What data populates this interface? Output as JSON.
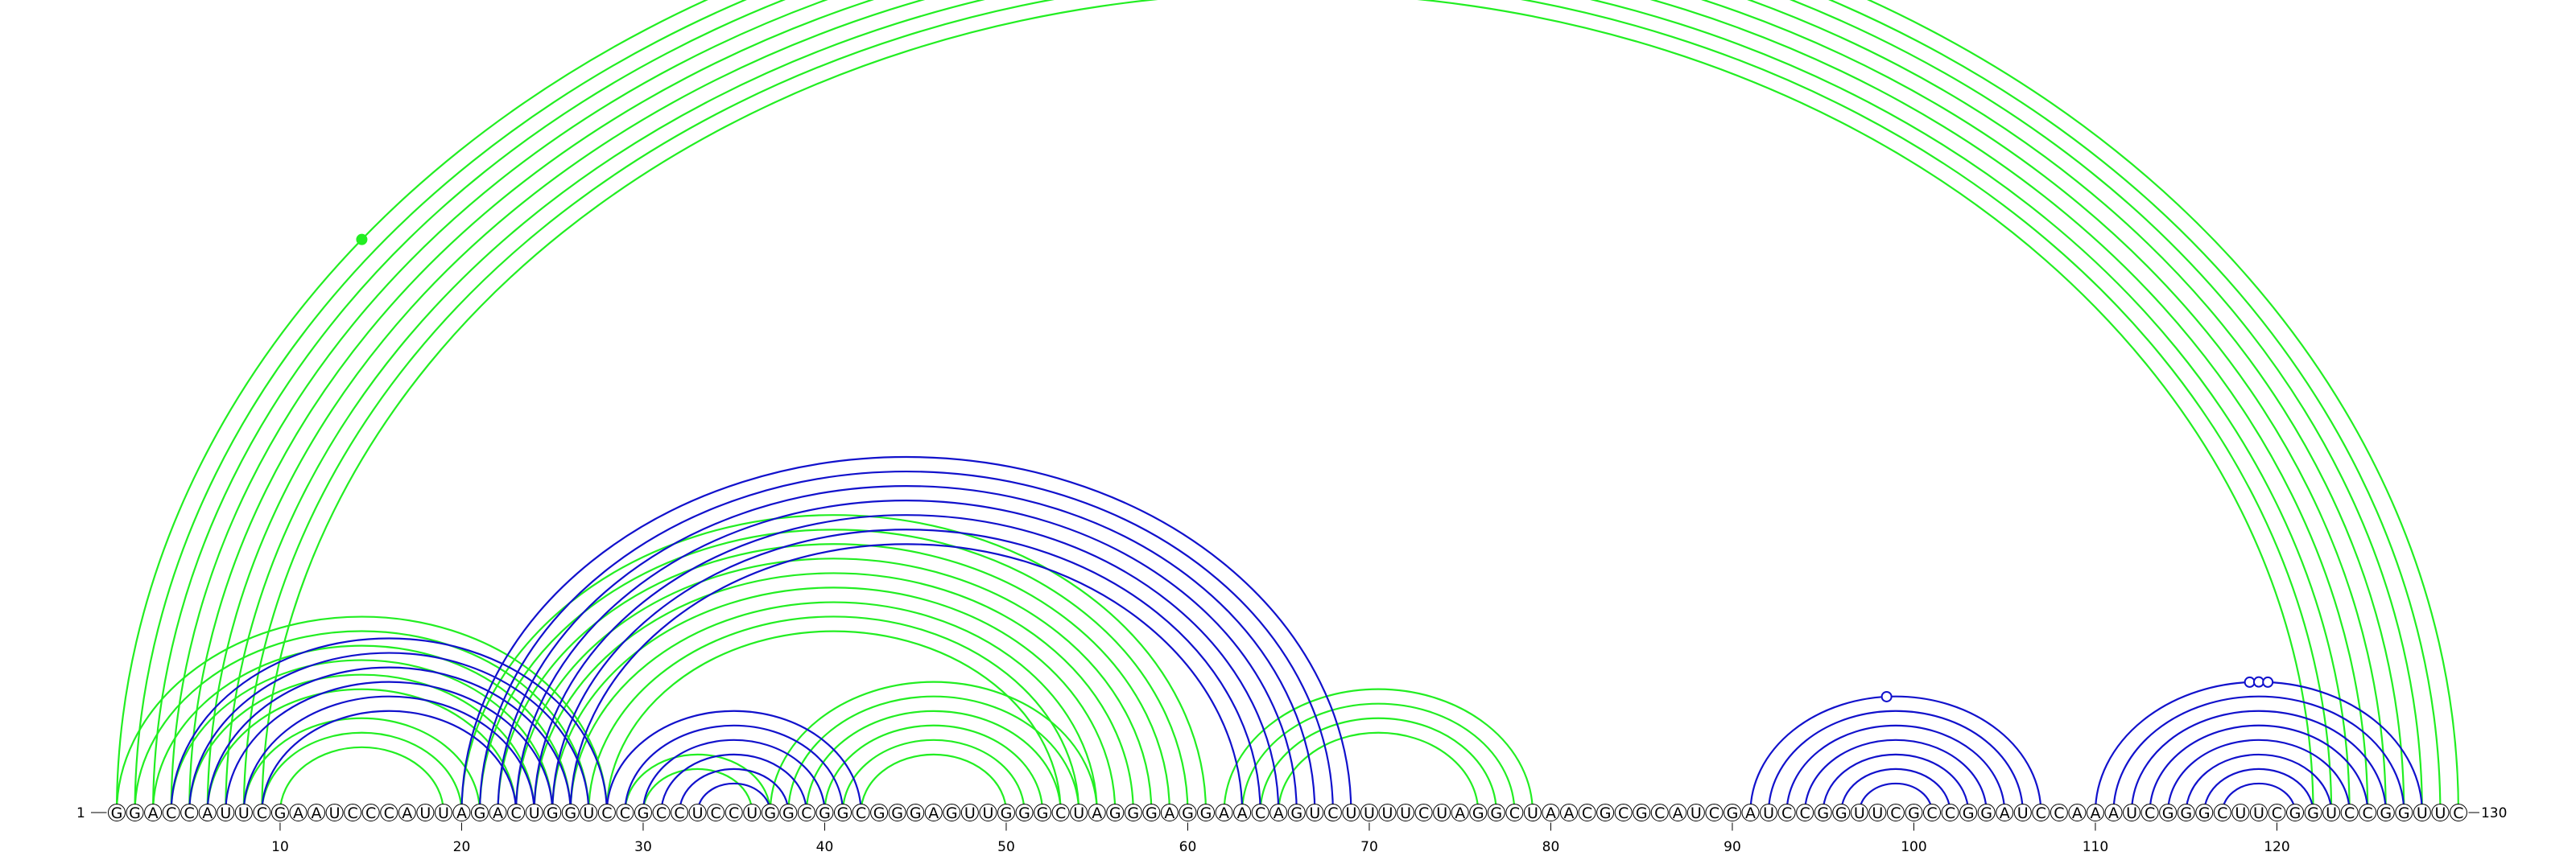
{
  "diagram": {
    "type": "rna-arc-diagram",
    "sequence": "GGACCAUUCGAAUCCCAUUAGACUGGUCCGCCUCCUGGCGGCGGGAGUUGGGCUAGGGAGGAACAGUCUUUUCUAGGCUAACGCGCAUCGAUCCGGUUCGCCGGAUCCAAAUCGGGCUUCGGUCCGGUUC",
    "start_label": "1",
    "end_label": "130",
    "tick_labels": [
      "10",
      "20",
      "30",
      "40",
      "50",
      "60",
      "70",
      "80",
      "90",
      "100",
      "110",
      "120"
    ],
    "tick_positions": [
      10,
      20,
      30,
      40,
      50,
      60,
      70,
      80,
      90,
      100,
      110,
      120
    ],
    "colors": {
      "green": "#22ee22",
      "blue": "#1111cc",
      "text": "#000000"
    },
    "structures": [
      {
        "color_key": "green",
        "above": true,
        "pairs": [
          [
            1,
            130
          ],
          [
            2,
            129
          ],
          [
            3,
            128
          ],
          [
            4,
            127
          ],
          [
            5,
            126
          ],
          [
            6,
            125
          ],
          [
            7,
            124
          ],
          [
            8,
            123
          ],
          [
            9,
            122
          ],
          [
            1,
            28
          ],
          [
            2,
            27
          ],
          [
            3,
            26
          ],
          [
            4,
            25
          ],
          [
            5,
            24
          ],
          [
            6,
            23
          ],
          [
            8,
            21
          ],
          [
            9,
            20
          ],
          [
            10,
            19
          ],
          [
            20,
            61
          ],
          [
            21,
            60
          ],
          [
            22,
            59
          ],
          [
            23,
            58
          ],
          [
            24,
            57
          ],
          [
            25,
            56
          ],
          [
            26,
            55
          ],
          [
            27,
            54
          ],
          [
            28,
            53
          ],
          [
            29,
            37
          ],
          [
            30,
            36
          ],
          [
            37,
            55
          ],
          [
            38,
            54
          ],
          [
            39,
            53
          ],
          [
            40,
            52
          ],
          [
            41,
            51
          ],
          [
            42,
            50
          ],
          [
            62,
            79
          ],
          [
            63,
            78
          ],
          [
            64,
            77
          ],
          [
            65,
            76
          ]
        ],
        "markers": [
          {
            "pos": 65.5,
            "filled": false
          },
          {
            "pos": 14.5,
            "filled": true
          },
          {
            "pos": 44.5,
            "filled": true
          },
          {
            "pos": 45.5,
            "filled": false
          },
          {
            "pos": 34.5,
            "filled": true
          }
        ]
      },
      {
        "color_key": "blue",
        "above": true,
        "pairs": [
          [
            4,
            28
          ],
          [
            5,
            27
          ],
          [
            6,
            26
          ],
          [
            7,
            25
          ],
          [
            8,
            24
          ],
          [
            9,
            23
          ],
          [
            20,
            69
          ],
          [
            21,
            68
          ],
          [
            22,
            67
          ],
          [
            23,
            66
          ],
          [
            24,
            65
          ],
          [
            25,
            64
          ],
          [
            26,
            63
          ],
          [
            28,
            42
          ],
          [
            29,
            41
          ],
          [
            30,
            40
          ],
          [
            31,
            39
          ],
          [
            32,
            38
          ],
          [
            33,
            37
          ],
          [
            91,
            107
          ],
          [
            92,
            106
          ],
          [
            93,
            105
          ],
          [
            94,
            104
          ],
          [
            95,
            103
          ],
          [
            96,
            102
          ],
          [
            97,
            101
          ],
          [
            110,
            128
          ],
          [
            111,
            127
          ],
          [
            112,
            126
          ],
          [
            113,
            125
          ],
          [
            114,
            124
          ],
          [
            115,
            123
          ],
          [
            116,
            122
          ],
          [
            117,
            121
          ]
        ],
        "markers": [
          {
            "pos": 98.5,
            "filled": false
          },
          {
            "pos": 118.5,
            "filled": false
          },
          {
            "pos": 119,
            "filled": false
          },
          {
            "pos": 119.5,
            "filled": false
          }
        ]
      }
    ]
  }
}
